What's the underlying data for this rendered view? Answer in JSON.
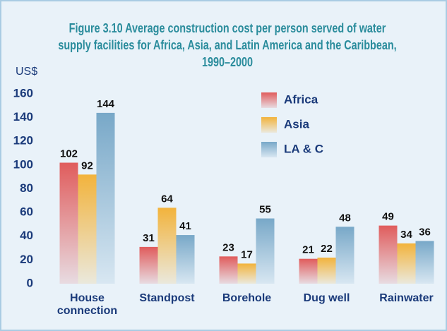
{
  "chart_data": {
    "type": "bar",
    "title": "Figure 3.10 Average construction cost per person served of water supply facilities for Africa, Asia, and Latin America and the Caribbean, 1990–2000",
    "y_label": "US$",
    "categories": [
      "House connection",
      "Standpost",
      "Borehole",
      "Dug well",
      "Rainwater"
    ],
    "series": [
      {
        "name": "Africa",
        "color": "#e05c5c",
        "values": [
          102,
          31,
          23,
          21,
          49
        ]
      },
      {
        "name": "Asia",
        "color": "#f2b33c",
        "values": [
          92,
          64,
          17,
          22,
          34
        ]
      },
      {
        "name": "LA & C",
        "color": "#78a8c8",
        "values": [
          144,
          41,
          55,
          48,
          36
        ]
      }
    ],
    "ylim": [
      0,
      160
    ],
    "yticks": [
      0,
      20,
      40,
      60,
      80,
      100,
      120,
      140,
      160
    ],
    "grid": false,
    "legend": "top-right"
  }
}
